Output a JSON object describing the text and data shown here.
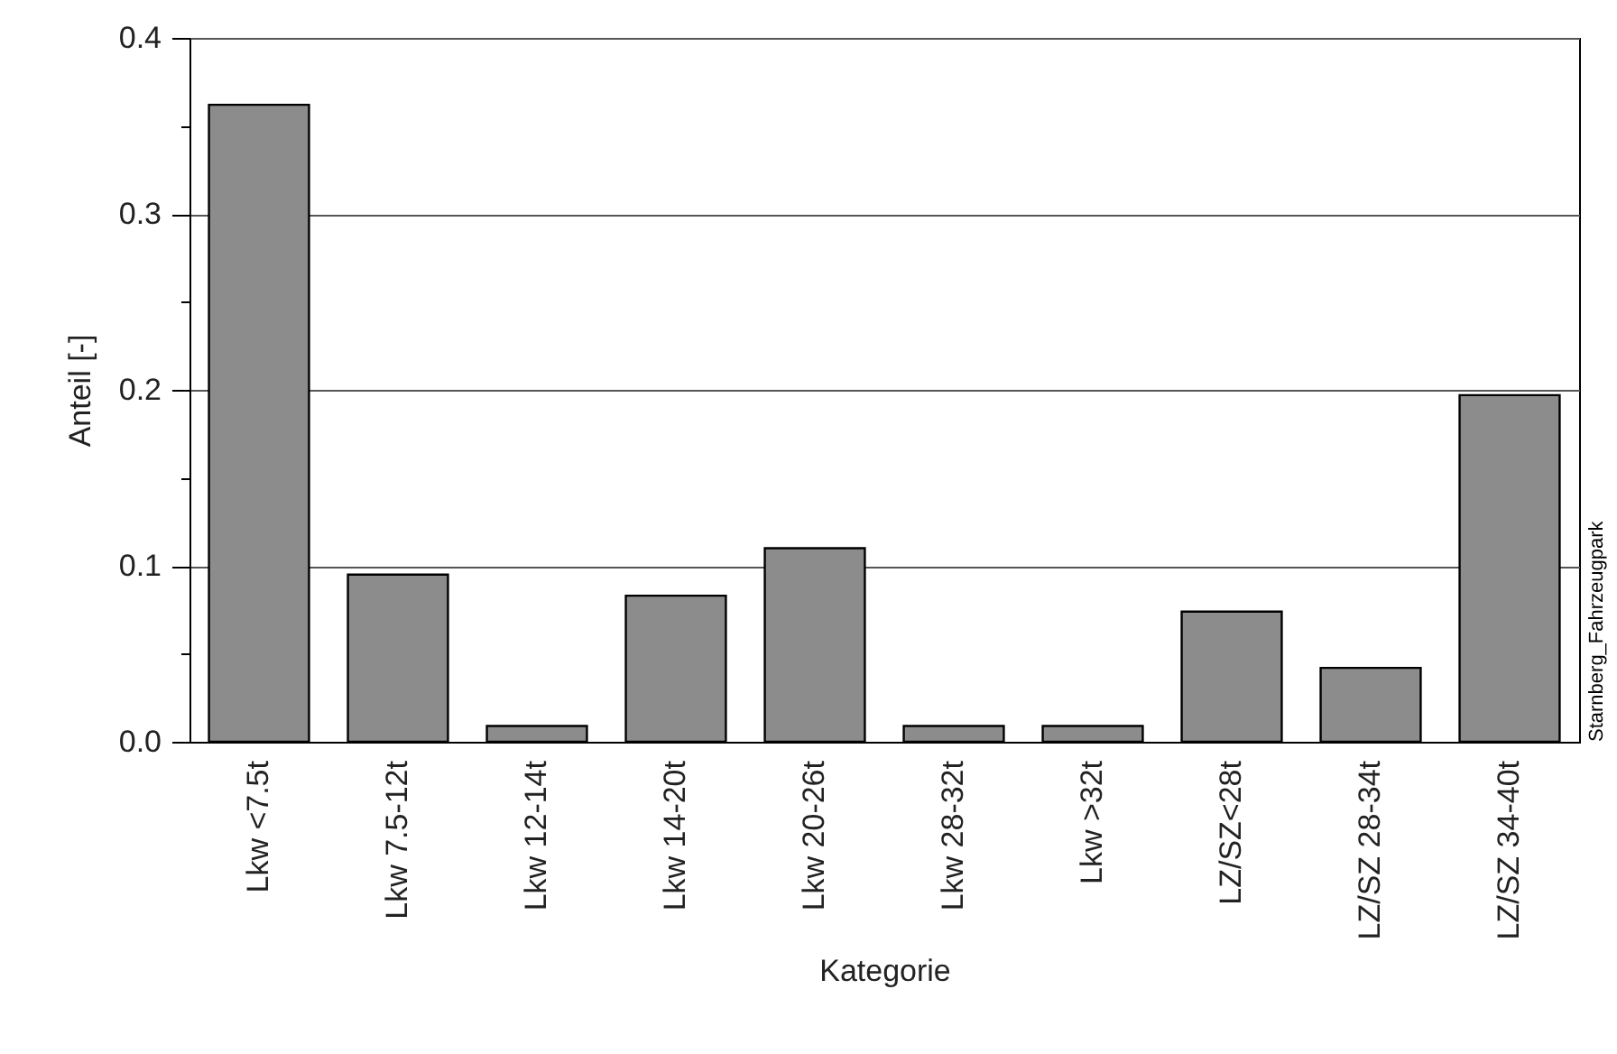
{
  "chart_data": {
    "type": "bar",
    "xlabel": "Kategorie",
    "ylabel": "Anteil [-]",
    "categories": [
      "Lkw <7.5t",
      "Lkw 7.5-12t",
      "Lkw 12-14t",
      "Lkw 14-20t",
      "Lkw 20-26t",
      "Lkw 28-32t",
      "Lkw >32t",
      "LZ/SZ<28t",
      "LZ/SZ 28-34t",
      "LZ/SZ 34-40t"
    ],
    "values": [
      0.362,
      0.095,
      0.009,
      0.083,
      0.11,
      0.009,
      0.009,
      0.074,
      0.042,
      0.197
    ],
    "color": "#8c8c8c",
    "ylim": [
      0,
      0.4
    ],
    "yticks": [
      {
        "value": 0,
        "label": "0.0"
      },
      {
        "value": 0.05,
        "label": null
      },
      0.1,
      {
        "value": 0.15,
        "label": null
      },
      0.2,
      {
        "value": 0.25,
        "label": null
      },
      0.3,
      {
        "value": 0.35,
        "label": null
      },
      0.4
    ],
    "grid": "y",
    "annotations": [
      "Starnberg_Fahrzeugpark"
    ]
  }
}
